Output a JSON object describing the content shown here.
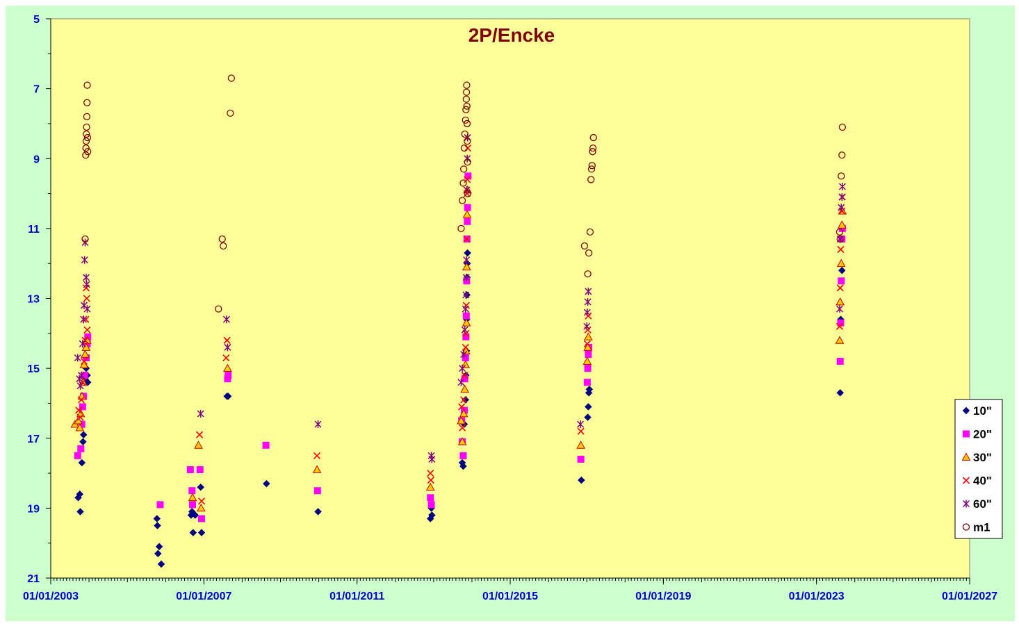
{
  "colors": {
    "outer_bg": "#CCFFCC",
    "plot_bg": "#FFFF99",
    "title": "#800000",
    "tick_label": "#0000CC",
    "axis": "#000000"
  },
  "chart_data": {
    "type": "scatter",
    "title": "2P/Encke",
    "xlabel": "",
    "ylabel": "",
    "x_axis": {
      "type": "date",
      "min": "2003-01-01",
      "max": "2027-01-01",
      "major_ticks": [
        "2003-01-01",
        "2007-01-01",
        "2011-01-01",
        "2015-01-01",
        "2019-01-01",
        "2023-01-01",
        "2027-01-01"
      ],
      "tick_labels": [
        "01/01/2003",
        "01/01/2007",
        "01/01/2011",
        "01/01/2015",
        "01/01/2019",
        "01/01/2023",
        "01/01/2027"
      ]
    },
    "y_axis": {
      "min": 5,
      "max": 21,
      "reversed": true,
      "tick_values": [
        5,
        7,
        9,
        11,
        13,
        15,
        17,
        19,
        21
      ],
      "tick_labels": [
        "5",
        "7",
        "9",
        "11",
        "13",
        "15",
        "17",
        "19",
        "21"
      ]
    },
    "grid": false,
    "legend": {
      "position": "right",
      "entries": [
        "10\"",
        "20\"",
        "30\"",
        "40\"",
        "60\"",
        "m1"
      ]
    },
    "series": [
      {
        "name": "10\"",
        "marker": "diamond",
        "color": "#000080",
        "points": [
          [
            "2003-09-20",
            18.7
          ],
          [
            "2003-10-05",
            18.6
          ],
          [
            "2003-10-10",
            19.1
          ],
          [
            "2003-10-25",
            17.7
          ],
          [
            "2003-11-05",
            17.1
          ],
          [
            "2003-11-10",
            16.9
          ],
          [
            "2003-11-25",
            15.3
          ],
          [
            "2003-12-05",
            15.0
          ],
          [
            "2003-12-15",
            15.2
          ],
          [
            "2003-12-20",
            15.4
          ],
          [
            "2005-10-10",
            19.3
          ],
          [
            "2005-10-15",
            19.5
          ],
          [
            "2005-10-20",
            20.3
          ],
          [
            "2005-11-01",
            20.1
          ],
          [
            "2005-11-20",
            20.6
          ],
          [
            "2006-09-01",
            19.2
          ],
          [
            "2006-09-10",
            19.1
          ],
          [
            "2006-09-20",
            19.7
          ],
          [
            "2006-10-10",
            19.2
          ],
          [
            "2006-12-01",
            18.4
          ],
          [
            "2006-12-10",
            19.7
          ],
          [
            "2007-08-10",
            15.8
          ],
          [
            "2007-08-20",
            15.8
          ],
          [
            "2008-08-20",
            18.3
          ],
          [
            "2009-12-25",
            19.1
          ],
          [
            "2012-12-01",
            19.3
          ],
          [
            "2012-12-10",
            19.0
          ],
          [
            "2012-12-15",
            19.2
          ],
          [
            "2013-10-01",
            17.7
          ],
          [
            "2013-10-10",
            17.8
          ],
          [
            "2013-10-20",
            16.6
          ],
          [
            "2013-10-25",
            16.2
          ],
          [
            "2013-11-01",
            15.9
          ],
          [
            "2013-11-05",
            15.2
          ],
          [
            "2013-11-10",
            14.5
          ],
          [
            "2013-11-12",
            13.6
          ],
          [
            "2013-11-14",
            12.9
          ],
          [
            "2013-11-16",
            12.4
          ],
          [
            "2013-11-18",
            12.0
          ],
          [
            "2013-11-20",
            11.7
          ],
          [
            "2016-11-10",
            18.2
          ],
          [
            "2017-01-10",
            16.4
          ],
          [
            "2017-01-15",
            16.1
          ],
          [
            "2017-01-20",
            15.7
          ],
          [
            "2017-01-25",
            15.6
          ],
          [
            "2023-08-15",
            15.7
          ],
          [
            "2023-08-20",
            13.6
          ],
          [
            "2023-09-01",
            12.2
          ]
        ]
      },
      {
        "name": "20\"",
        "marker": "square",
        "color": "#FF00FF",
        "points": [
          [
            "2003-09-15",
            17.5
          ],
          [
            "2003-10-15",
            17.3
          ],
          [
            "2003-10-25",
            16.6
          ],
          [
            "2003-11-01",
            16.1
          ],
          [
            "2003-11-10",
            15.8
          ],
          [
            "2003-11-20",
            15.2
          ],
          [
            "2003-12-05",
            14.7
          ],
          [
            "2003-12-15",
            14.3
          ],
          [
            "2003-12-20",
            14.1
          ],
          [
            "2005-11-10",
            18.9
          ],
          [
            "2006-08-25",
            17.9
          ],
          [
            "2006-09-10",
            18.5
          ],
          [
            "2006-09-15",
            18.9
          ],
          [
            "2006-11-25",
            17.9
          ],
          [
            "2006-12-10",
            19.3
          ],
          [
            "2007-08-15",
            15.3
          ],
          [
            "2007-08-20",
            15.2
          ],
          [
            "2008-08-15",
            17.2
          ],
          [
            "2009-12-20",
            18.5
          ],
          [
            "2012-12-01",
            18.7
          ],
          [
            "2012-12-10",
            18.9
          ],
          [
            "2013-09-25",
            16.5
          ],
          [
            "2013-10-01",
            17.1
          ],
          [
            "2013-10-10",
            17.5
          ],
          [
            "2013-10-20",
            16.2
          ],
          [
            "2013-10-25",
            15.3
          ],
          [
            "2013-11-01",
            14.7
          ],
          [
            "2013-11-05",
            14.1
          ],
          [
            "2013-11-08",
            13.5
          ],
          [
            "2013-11-12",
            12.5
          ],
          [
            "2013-11-15",
            11.3
          ],
          [
            "2013-11-18",
            10.8
          ],
          [
            "2013-11-20",
            10.4
          ],
          [
            "2013-11-25",
            9.5
          ],
          [
            "2016-11-05",
            17.6
          ],
          [
            "2017-01-05",
            15.4
          ],
          [
            "2017-01-10",
            15.0
          ],
          [
            "2017-01-15",
            14.6
          ],
          [
            "2017-01-20",
            14.4
          ],
          [
            "2023-08-15",
            14.8
          ],
          [
            "2023-08-20",
            13.7
          ],
          [
            "2023-08-25",
            12.5
          ],
          [
            "2023-09-01",
            11.3
          ],
          [
            "2023-09-05",
            11.0
          ]
        ]
      },
      {
        "name": "30\"",
        "marker": "triangle",
        "color": "#FFCC00",
        "stroke": "#CC0000",
        "points": [
          [
            "2003-08-20",
            16.6
          ],
          [
            "2003-09-20",
            16.5
          ],
          [
            "2003-10-05",
            16.7
          ],
          [
            "2003-10-15",
            16.3
          ],
          [
            "2003-10-25",
            15.8
          ],
          [
            "2003-11-05",
            15.4
          ],
          [
            "2003-11-15",
            14.9
          ],
          [
            "2003-11-25",
            14.6
          ],
          [
            "2003-12-05",
            14.4
          ],
          [
            "2003-12-15",
            14.2
          ],
          [
            "2006-09-15",
            18.7
          ],
          [
            "2006-11-10",
            17.2
          ],
          [
            "2006-12-05",
            19.0
          ],
          [
            "2007-08-15",
            15.0
          ],
          [
            "2009-12-15",
            17.9
          ],
          [
            "2012-12-01",
            18.4
          ],
          [
            "2013-09-20",
            16.5
          ],
          [
            "2013-10-01",
            17.1
          ],
          [
            "2013-10-15",
            16.3
          ],
          [
            "2013-10-25",
            15.6
          ],
          [
            "2013-11-01",
            14.9
          ],
          [
            "2013-11-05",
            14.5
          ],
          [
            "2013-11-10",
            13.7
          ],
          [
            "2013-11-12",
            12.1
          ],
          [
            "2013-11-16",
            10.6
          ],
          [
            "2013-11-20",
            9.9
          ],
          [
            "2016-11-05",
            17.2
          ],
          [
            "2017-01-05",
            14.8
          ],
          [
            "2017-01-10",
            14.4
          ],
          [
            "2017-01-15",
            14.1
          ],
          [
            "2023-08-10",
            14.2
          ],
          [
            "2023-08-15",
            13.1
          ],
          [
            "2023-08-25",
            12.0
          ],
          [
            "2023-09-01",
            10.9
          ],
          [
            "2023-09-05",
            10.5
          ]
        ]
      },
      {
        "name": "40\"",
        "marker": "x",
        "color": "#FF0000",
        "points": [
          [
            "2003-09-25",
            16.2
          ],
          [
            "2003-10-10",
            16.4
          ],
          [
            "2003-10-20",
            15.9
          ],
          [
            "2003-11-01",
            15.4
          ],
          [
            "2003-11-15",
            14.8
          ],
          [
            "2003-11-25",
            14.2
          ],
          [
            "2003-12-01",
            13.6
          ],
          [
            "2003-12-05",
            12.7
          ],
          [
            "2003-12-10",
            13.0
          ],
          [
            "2003-12-15",
            13.9
          ],
          [
            "2006-11-20",
            16.9
          ],
          [
            "2006-12-10",
            18.8
          ],
          [
            "2007-08-01",
            14.7
          ],
          [
            "2007-08-10",
            14.2
          ],
          [
            "2009-12-15",
            17.5
          ],
          [
            "2012-12-01",
            18.0
          ],
          [
            "2012-12-05",
            18.2
          ],
          [
            "2013-09-25",
            16.1
          ],
          [
            "2013-10-01",
            16.7
          ],
          [
            "2013-10-15",
            15.9
          ],
          [
            "2013-10-25",
            15.2
          ],
          [
            "2013-11-01",
            14.4
          ],
          [
            "2013-11-05",
            14.0
          ],
          [
            "2013-11-08",
            13.2
          ],
          [
            "2013-11-12",
            11.3
          ],
          [
            "2013-11-15",
            10.0
          ],
          [
            "2013-11-18",
            9.6
          ],
          [
            "2013-11-22",
            8.7
          ],
          [
            "2016-11-05",
            16.8
          ],
          [
            "2017-01-05",
            14.3
          ],
          [
            "2017-01-10",
            13.9
          ],
          [
            "2017-01-15",
            13.5
          ],
          [
            "2023-08-10",
            13.8
          ],
          [
            "2023-08-15",
            12.7
          ],
          [
            "2023-08-20",
            11.6
          ],
          [
            "2023-09-01",
            10.5
          ],
          [
            "2023-09-05",
            10.1
          ]
        ]
      },
      {
        "name": "60\"",
        "marker": "star",
        "color": "#800080",
        "points": [
          [
            "2003-09-15",
            14.7
          ],
          [
            "2003-10-01",
            15.3
          ],
          [
            "2003-10-10",
            15.5
          ],
          [
            "2003-10-20",
            15.2
          ],
          [
            "2003-11-01",
            14.3
          ],
          [
            "2003-11-10",
            13.6
          ],
          [
            "2003-11-15",
            13.2
          ],
          [
            "2003-11-20",
            11.9
          ],
          [
            "2003-11-25",
            11.4
          ],
          [
            "2003-12-05",
            12.4
          ],
          [
            "2003-12-10",
            12.6
          ],
          [
            "2003-12-15",
            13.3
          ],
          [
            "2006-12-01",
            16.3
          ],
          [
            "2007-08-05",
            13.6
          ],
          [
            "2007-08-15",
            14.4
          ],
          [
            "2009-12-25",
            16.6
          ],
          [
            "2012-12-10",
            17.5
          ],
          [
            "2012-12-15",
            17.6
          ],
          [
            "2013-09-20",
            15.4
          ],
          [
            "2013-10-01",
            15.0
          ],
          [
            "2013-10-15",
            14.6
          ],
          [
            "2013-10-25",
            13.9
          ],
          [
            "2013-11-01",
            13.3
          ],
          [
            "2013-11-05",
            12.9
          ],
          [
            "2013-11-08",
            12.4
          ],
          [
            "2013-11-10",
            11.9
          ],
          [
            "2013-11-14",
            9.9
          ],
          [
            "2013-11-17",
            9.0
          ],
          [
            "2013-11-20",
            8.4
          ],
          [
            "2016-11-01",
            16.6
          ],
          [
            "2017-01-01",
            13.8
          ],
          [
            "2017-01-05",
            13.4
          ],
          [
            "2017-01-10",
            13.1
          ],
          [
            "2017-01-15",
            12.8
          ],
          [
            "2023-08-10",
            13.3
          ],
          [
            "2023-08-15",
            11.3
          ],
          [
            "2023-08-25",
            10.4
          ],
          [
            "2023-09-01",
            10.1
          ],
          [
            "2023-09-05",
            9.8
          ]
        ]
      },
      {
        "name": "m1",
        "marker": "circle",
        "color": "#800000",
        "points": [
          [
            "2003-11-25",
            11.3
          ],
          [
            "2003-12-01",
            8.9
          ],
          [
            "2003-12-03",
            8.7
          ],
          [
            "2003-12-05",
            8.5
          ],
          [
            "2003-12-07",
            8.3
          ],
          [
            "2003-12-09",
            8.1
          ],
          [
            "2003-12-11",
            7.8
          ],
          [
            "2003-12-13",
            7.4
          ],
          [
            "2003-12-15",
            6.9
          ],
          [
            "2003-12-18",
            8.4
          ],
          [
            "2003-12-20",
            8.8
          ],
          [
            "2007-05-20",
            13.3
          ],
          [
            "2007-06-25",
            11.3
          ],
          [
            "2007-07-05",
            11.5
          ],
          [
            "2007-09-10",
            7.7
          ],
          [
            "2007-09-20",
            6.7
          ],
          [
            "2013-09-20",
            11.0
          ],
          [
            "2013-10-01",
            10.2
          ],
          [
            "2013-10-10",
            9.7
          ],
          [
            "2013-10-15",
            9.3
          ],
          [
            "2013-10-20",
            8.7
          ],
          [
            "2013-10-25",
            8.3
          ],
          [
            "2013-11-01",
            7.9
          ],
          [
            "2013-11-05",
            7.6
          ],
          [
            "2013-11-08",
            7.3
          ],
          [
            "2013-11-10",
            7.1
          ],
          [
            "2013-11-12",
            6.9
          ],
          [
            "2013-11-14",
            7.5
          ],
          [
            "2013-11-16",
            8.0
          ],
          [
            "2013-11-18",
            8.5
          ],
          [
            "2013-11-20",
            9.1
          ],
          [
            "2013-11-22",
            10.0
          ],
          [
            "2016-12-10",
            11.5
          ],
          [
            "2017-01-10",
            12.3
          ],
          [
            "2017-01-20",
            11.7
          ],
          [
            "2017-02-01",
            11.1
          ],
          [
            "2017-02-10",
            9.6
          ],
          [
            "2017-02-15",
            9.3
          ],
          [
            "2017-02-20",
            9.2
          ],
          [
            "2017-02-25",
            8.8
          ],
          [
            "2017-03-01",
            8.7
          ],
          [
            "2017-03-05",
            8.4
          ],
          [
            "2023-08-10",
            11.1
          ],
          [
            "2023-08-15",
            11.3
          ],
          [
            "2023-08-25",
            9.5
          ],
          [
            "2023-09-01",
            8.9
          ],
          [
            "2023-09-05",
            8.1
          ]
        ]
      }
    ]
  }
}
